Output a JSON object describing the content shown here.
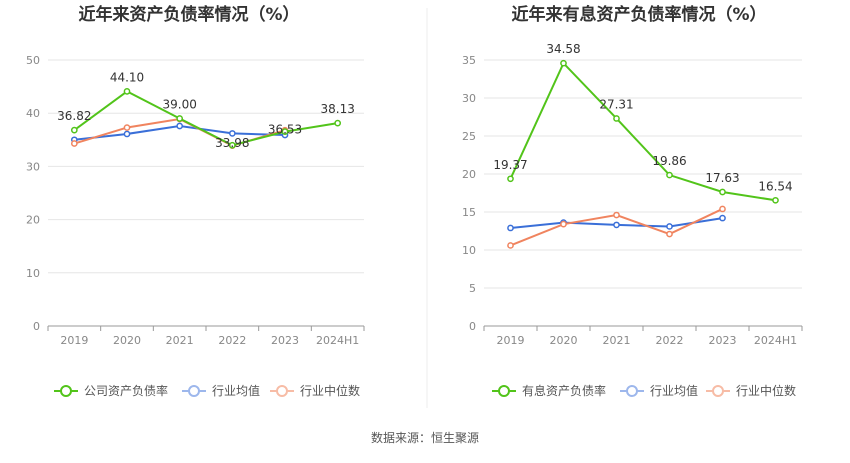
{
  "source": "数据来源：恒生聚源",
  "chart_data": [
    {
      "type": "line",
      "title": "近年来资产负债率情况（%）",
      "categories": [
        "2019",
        "2020",
        "2021",
        "2022",
        "2023",
        "2024H1"
      ],
      "ylim": [
        0,
        50
      ],
      "yticks": [
        "0",
        "10",
        "20",
        "30",
        "40",
        "50"
      ],
      "legend_position": "bottom",
      "series": [
        {
          "name": "公司资产负债率",
          "color": "#52c41a",
          "values": [
            36.82,
            44.1,
            39.0,
            33.98,
            36.53,
            38.13
          ],
          "labels": [
            "36.82",
            "44.10",
            "39.00",
            "33.98",
            "36.53",
            "38.13"
          ]
        },
        {
          "name": "行业均值",
          "color": "#3a6fd8",
          "values": [
            35.0,
            36.1,
            37.6,
            36.2,
            35.9,
            null
          ]
        },
        {
          "name": "行业中位数",
          "color": "#f0845f",
          "values": [
            34.3,
            37.3,
            38.9,
            33.9,
            36.8,
            null
          ]
        }
      ]
    },
    {
      "type": "line",
      "title": "近年来有息资产负债率情况（%）",
      "categories": [
        "2019",
        "2020",
        "2021",
        "2022",
        "2023",
        "2024H1"
      ],
      "ylim": [
        0,
        35
      ],
      "yticks": [
        "0",
        "5",
        "10",
        "15",
        "20",
        "25",
        "30",
        "35"
      ],
      "legend_position": "bottom",
      "series": [
        {
          "name": "有息资产负债率",
          "color": "#52c41a",
          "values": [
            19.37,
            34.58,
            27.31,
            19.86,
            17.63,
            16.54
          ],
          "labels": [
            "19.37",
            "34.58",
            "27.31",
            "19.86",
            "17.63",
            "16.54"
          ]
        },
        {
          "name": "行业均值",
          "color": "#3a6fd8",
          "values": [
            12.9,
            13.6,
            13.3,
            13.1,
            14.2,
            null
          ]
        },
        {
          "name": "行业中位数",
          "color": "#f0845f",
          "values": [
            10.6,
            13.4,
            14.6,
            12.1,
            15.4,
            null
          ]
        }
      ]
    }
  ]
}
